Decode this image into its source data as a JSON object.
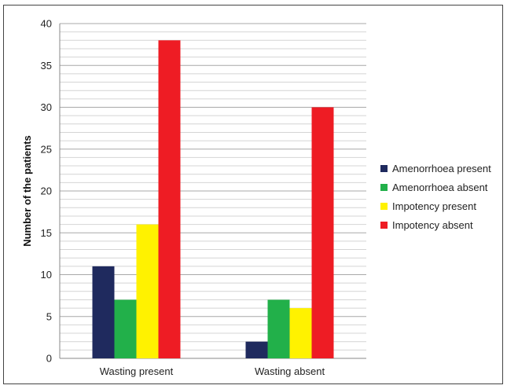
{
  "chart_data": {
    "type": "bar",
    "title": "",
    "xlabel": "",
    "ylabel": "Number of the patients",
    "ylim": [
      0,
      40
    ],
    "y_ticks": [
      0,
      5,
      10,
      15,
      20,
      25,
      30,
      35,
      40
    ],
    "grid": true,
    "legend_position": "right",
    "categories": [
      "Wasting present",
      "Wasting absent"
    ],
    "series": [
      {
        "name": "Amenorrhoea present",
        "color": "#1f2a5e",
        "values": [
          11,
          2
        ]
      },
      {
        "name": "Amenorrhoea absent",
        "color": "#22b04a",
        "values": [
          7,
          7
        ]
      },
      {
        "name": "Impotency present",
        "color": "#fff200",
        "values": [
          16,
          6
        ]
      },
      {
        "name": "Impotency absent",
        "color": "#ee1c24",
        "values": [
          38,
          30
        ]
      }
    ]
  }
}
